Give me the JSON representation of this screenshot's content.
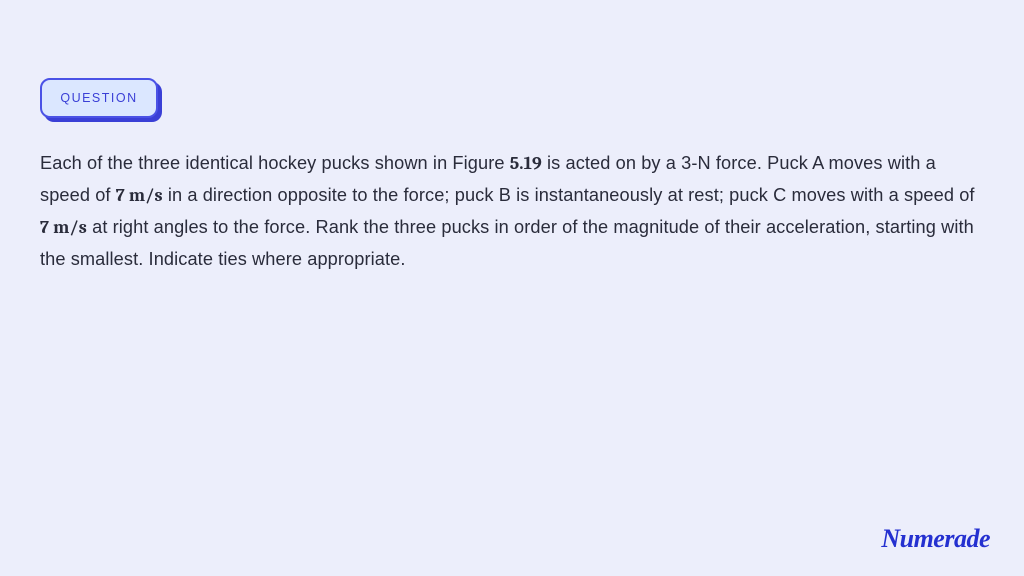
{
  "colors": {
    "page_bg": "#eceefb",
    "badge_bg": "#dbe7ff",
    "badge_border": "#4a52e6",
    "badge_shadow": "#3a3fd6",
    "badge_text": "#3a3fd6",
    "body_text": "#2a2c3b",
    "logo_text": "#2430d0"
  },
  "typography": {
    "badge_fontsize": 12.5,
    "badge_letterspacing": 1.5,
    "body_fontsize": 18.2,
    "body_lineheight": 1.75,
    "logo_fontsize": 26
  },
  "badge": {
    "label": "QUESTION"
  },
  "question": {
    "part1": "Each of the three identical hockey pucks shown in Figure ",
    "fig_num": "5.19",
    "part2": " is acted on by a 3-N force. Puck A moves with a speed of ",
    "speed_a": "7 m/s",
    "part3": " in a direction opposite to the force; puck B is instantaneously at rest; puck C moves with a speed of  ",
    "speed_c": "7 m/s",
    "part4": " at right angles to the force. Rank the three pucks in order of the magnitude of their acceleration, starting with the smallest. Indicate ties where appropriate."
  },
  "logo": {
    "text": "Numerade"
  }
}
